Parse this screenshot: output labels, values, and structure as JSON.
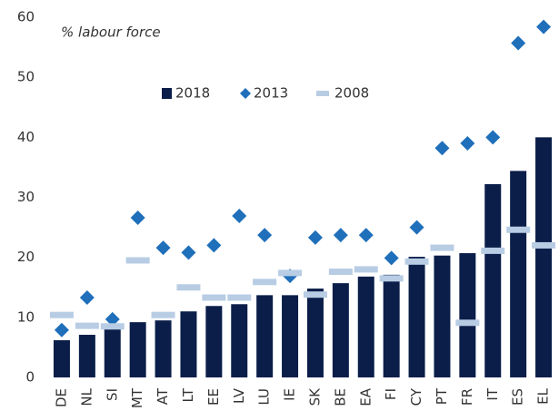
{
  "chart_data": {
    "type": "bar",
    "y_label": "% labour force",
    "categories": [
      "DE",
      "NL",
      "SI",
      "MT",
      "AT",
      "LT",
      "EE",
      "LV",
      "LU",
      "IE",
      "SK",
      "BE",
      "EA",
      "FI",
      "CY",
      "PT",
      "FR",
      "IT",
      "ES",
      "EL"
    ],
    "series": [
      {
        "name": "2018",
        "marker": "bar",
        "color": "#0b1e4a",
        "values": [
          6.2,
          7.1,
          8.8,
          9.2,
          9.5,
          11.0,
          11.9,
          12.2,
          13.7,
          13.7,
          14.8,
          15.7,
          16.8,
          17.1,
          20.1,
          20.3,
          20.7,
          32.2,
          34.4,
          40.0
        ]
      },
      {
        "name": "2013",
        "marker": "diamond",
        "color": "#1f6fba",
        "values": [
          7.9,
          13.3,
          9.7,
          26.6,
          21.6,
          20.8,
          22.0,
          26.9,
          23.7,
          16.9,
          23.3,
          23.7,
          23.7,
          19.9,
          25.0,
          38.2,
          39.0,
          40.0,
          55.7,
          58.4
        ]
      },
      {
        "name": "2008",
        "marker": "dash",
        "color": "#b8cde4",
        "values": [
          10.4,
          8.6,
          8.5,
          19.5,
          10.4,
          15.0,
          13.3,
          13.3,
          15.9,
          17.4,
          13.8,
          17.6,
          18.0,
          16.5,
          19.3,
          21.6,
          9.1,
          21.1,
          24.6,
          22.0
        ]
      }
    ],
    "ylim": [
      0,
      60
    ],
    "yticks": [
      0,
      10,
      20,
      30,
      40,
      50,
      60
    ],
    "grid": false
  }
}
